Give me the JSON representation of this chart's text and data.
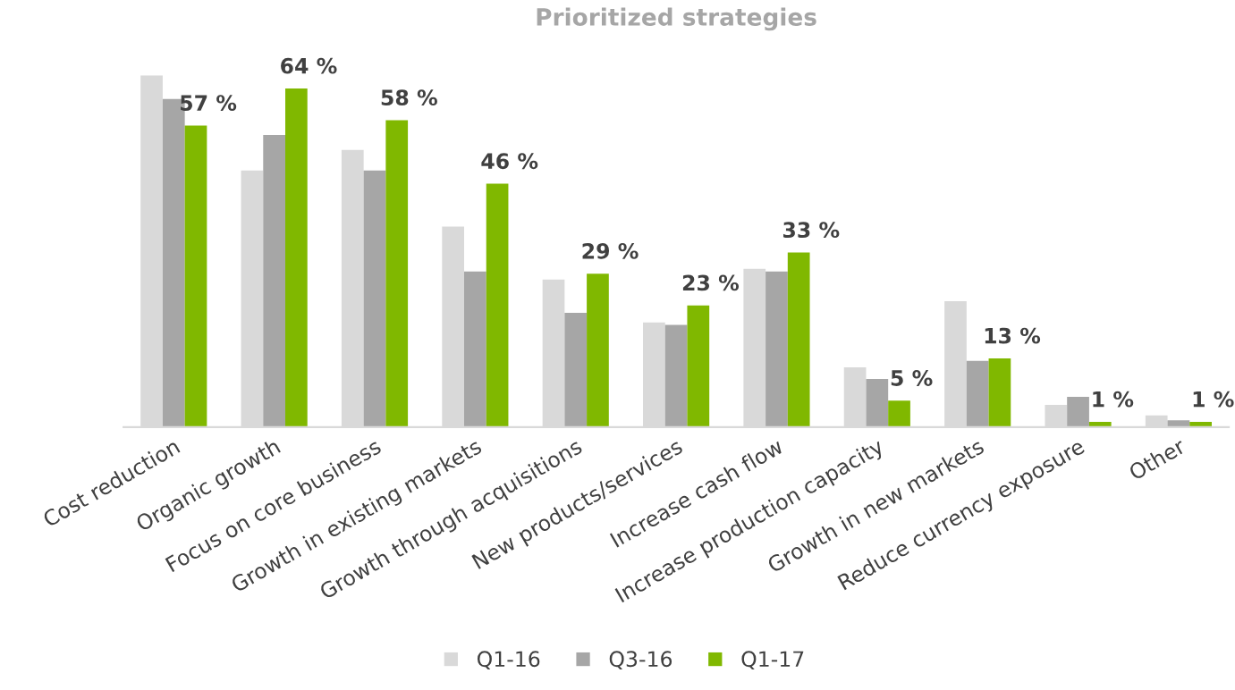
{
  "chart_data": {
    "type": "bar",
    "title": "Prioritized strategies",
    "tick_labels": "x",
    "categories": [
      "Cost reduction",
      "Organic growth",
      "Focus on core business",
      "Growth in existing markets",
      "Growth through acquisitions",
      "New products/services",
      "Increase cash flow",
      "Increase production capacity",
      "Growth in new markets",
      "Reduce currency exposure",
      "Other"
    ],
    "series": [
      {
        "name": "Q1-16",
        "color": "#d9d9d9",
        "values": [
          66.5,
          48.5,
          52.4,
          37.9,
          27.9,
          19.8,
          29.9,
          11.3,
          23.8,
          4.2,
          2.2
        ]
      },
      {
        "name": "Q3-16",
        "color": "#a6a6a6",
        "values": [
          62.0,
          55.2,
          48.5,
          29.4,
          21.6,
          19.3,
          29.4,
          9.1,
          12.5,
          5.7,
          1.3
        ]
      },
      {
        "name": "Q1-17",
        "color": "#80b800",
        "values": [
          57,
          64,
          58,
          46,
          29,
          23,
          33,
          5,
          13,
          1,
          1
        ],
        "value_labels": [
          "57 %",
          "64 %",
          "58 %",
          "46 %",
          "29 %",
          "23 %",
          "33 %",
          "5 %",
          "13 %",
          "1 %",
          "1 %"
        ]
      }
    ],
    "legend": "bottom",
    "grid": false
  }
}
